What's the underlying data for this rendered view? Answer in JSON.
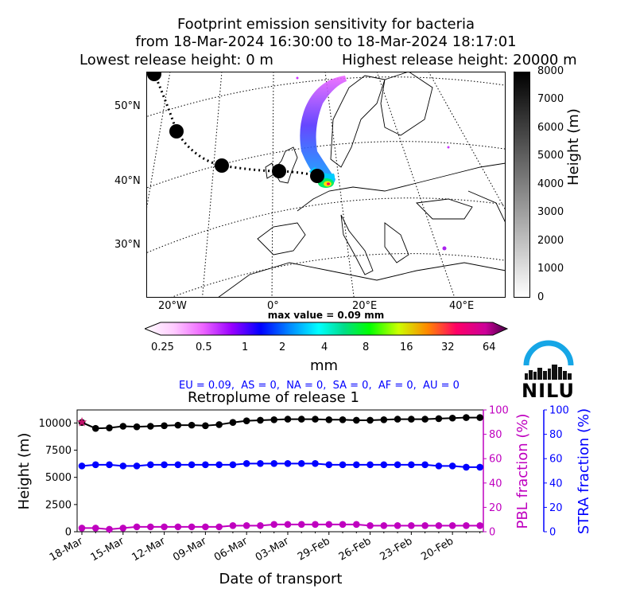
{
  "title": {
    "line1": "Footprint emission sensitivity for bacteria",
    "line2": "from 18-Mar-2024 16:30:00 to 18-Mar-2024 18:17:01",
    "line3_left": "Lowest release height: 0 m",
    "line3_right": "Highest release height: 20000 m"
  },
  "map": {
    "lat_labels": [
      "50°N",
      "40°N",
      "30°N"
    ],
    "lon_labels": [
      "20°W",
      "0°",
      "20°E",
      "40°E"
    ],
    "max_value_text": "max value = 0.09 mm",
    "height_colorbar": {
      "label": "Height (m)",
      "ticks": [
        "8000",
        "7000",
        "6000",
        "5000",
        "4000",
        "3000",
        "2000",
        "1000",
        "0"
      ]
    },
    "sensitivity_colorbar": {
      "unit": "mm",
      "ticks": [
        "0.25",
        "0.5",
        "1",
        "2",
        "4",
        "8",
        "16",
        "32",
        "64"
      ]
    },
    "region_values": "EU = 0.09,  AS = 0,  NA = 0,  SA = 0,  AF = 0,  AU = 0",
    "logo_text": "NILU",
    "colors": {
      "plume_core": "#0044ff",
      "plume_edge": "#cc33ff",
      "trajectory": "#000000"
    }
  },
  "chart_data": {
    "type": "line",
    "title": "Retroplume of release 1",
    "xlabel": "Date of transport",
    "x_ticks": [
      "18-Mar",
      "15-Mar",
      "12-Mar",
      "09-Mar",
      "06-Mar",
      "03-Mar",
      "29-Feb",
      "26-Feb",
      "23-Feb",
      "20-Feb"
    ],
    "x_days_back": [
      0,
      1,
      2,
      3,
      4,
      5,
      6,
      7,
      8,
      9,
      10,
      11,
      12,
      13,
      14,
      15,
      16,
      17,
      18,
      19,
      20,
      21,
      22,
      23,
      24,
      25,
      26,
      27,
      28,
      29
    ],
    "ylim": [
      0,
      11200
    ],
    "y_ticks": [
      0,
      2500,
      5000,
      7500,
      10000
    ],
    "y2_ticks": [
      0,
      20,
      40,
      60,
      80,
      100
    ],
    "axes": {
      "left": {
        "label": "Height (m)",
        "color": "#000000",
        "lim": [
          0,
          11200
        ]
      },
      "pbl": {
        "label": "PBL fraction (%)",
        "color": "#bf00bf",
        "lim": [
          0,
          100
        ]
      },
      "stra": {
        "label": "STRA fraction (%)",
        "color": "#0000ff",
        "lim": [
          0,
          100
        ]
      }
    },
    "series": [
      {
        "name": "Height",
        "axis": "left",
        "color": "#000000",
        "values": [
          10050,
          9500,
          9550,
          9700,
          9650,
          9700,
          9750,
          9800,
          9800,
          9750,
          9850,
          10050,
          10200,
          10250,
          10300,
          10350,
          10350,
          10350,
          10300,
          10300,
          10250,
          10250,
          10300,
          10350,
          10350,
          10350,
          10400,
          10450,
          10500,
          10500
        ]
      },
      {
        "name": "PBL fraction",
        "axis": "pbl",
        "color": "#bf00bf",
        "values": [
          3,
          3,
          2,
          3,
          4,
          4,
          4,
          4,
          4,
          4,
          4,
          5,
          5,
          5,
          6,
          6,
          6,
          6,
          6,
          6,
          6,
          5,
          5,
          5,
          5,
          5,
          5,
          5,
          5,
          5
        ]
      },
      {
        "name": "STRA fraction",
        "axis": "stra",
        "color": "#0000ff",
        "values": [
          54,
          55,
          55,
          54,
          54,
          55,
          55,
          55,
          55,
          55,
          55,
          55,
          56,
          56,
          56,
          56,
          56,
          56,
          55,
          55,
          55,
          55,
          55,
          55,
          55,
          55,
          54,
          54,
          53,
          53
        ]
      }
    ],
    "release_marker": {
      "x": 0,
      "y": 10050,
      "color": "#c0106a"
    }
  }
}
